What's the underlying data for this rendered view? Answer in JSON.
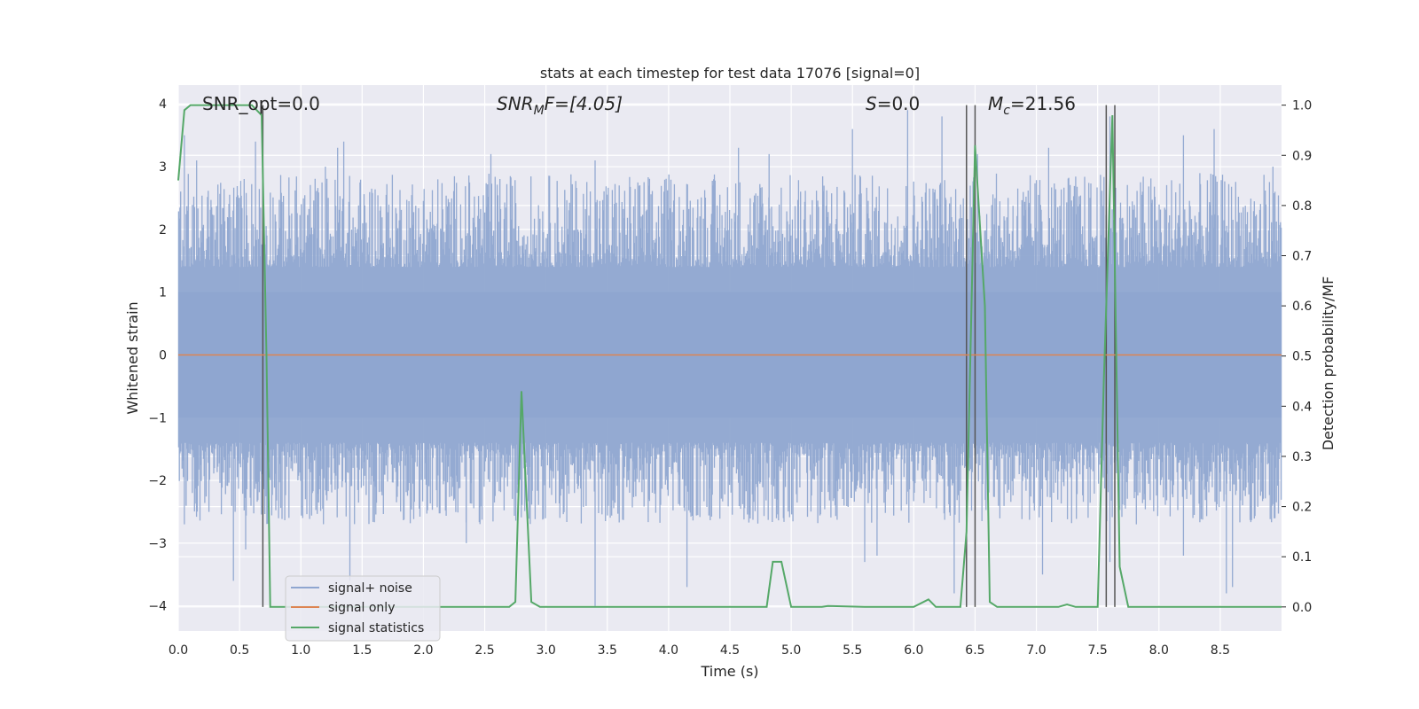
{
  "chart_data": {
    "type": "line",
    "title": "stats at each timestep for test data 17076 [signal=0]",
    "xlabel": "Time (s)",
    "ylabel": "Whitened strain",
    "y2label": "Detection probability/MF",
    "xlim": [
      0,
      9.0
    ],
    "ylim": [
      -4.4,
      4.3
    ],
    "y2lim": [
      -0.048,
      1.04
    ],
    "x_ticks": [
      "0.0",
      "0.5",
      "1.0",
      "1.5",
      "2.0",
      "2.5",
      "3.0",
      "3.5",
      "4.0",
      "4.5",
      "5.0",
      "5.5",
      "6.0",
      "6.5",
      "7.0",
      "7.5",
      "8.0",
      "8.5"
    ],
    "y_ticks": [
      "4",
      "3",
      "2",
      "1",
      "0",
      "−1",
      "−2",
      "−3",
      "−4"
    ],
    "y2_ticks": [
      "1.0",
      "0.9",
      "0.8",
      "0.7",
      "0.6",
      "0.5",
      "0.4",
      "0.3",
      "0.2",
      "0.1",
      "0.0"
    ],
    "grid": true,
    "legend_position": "lower-left",
    "annotations": {
      "snr_opt": "SNR_opt=0.0",
      "snr_mf_main": "SNR",
      "snr_mf_sub": "M",
      "snr_mf_rest": "F=[4.05]",
      "s_main": "S",
      "s_rest": "=0.0",
      "mc_main": "M",
      "mc_sub": "c",
      "mc_rest": "=21.56"
    },
    "series": [
      {
        "name": "signal+ noise",
        "color": "#8fa6d0",
        "axis": "left",
        "description_values": "white noise, approx ±2 sigma",
        "outlier_peaks": [
          [
            0.05,
            3.5
          ],
          [
            0.15,
            3.1
          ],
          [
            0.63,
            3.4
          ],
          [
            1.2,
            3.0
          ],
          [
            1.3,
            3.3
          ],
          [
            1.35,
            3.4
          ],
          [
            2.55,
            3.2
          ],
          [
            3.4,
            3.1
          ],
          [
            4.57,
            3.3
          ],
          [
            4.82,
            3.2
          ],
          [
            5.5,
            3.6
          ],
          [
            5.95,
            3.9
          ],
          [
            6.23,
            3.8
          ],
          [
            6.52,
            3.2
          ],
          [
            7.1,
            3.3
          ],
          [
            7.6,
            3.8
          ],
          [
            8.2,
            3.5
          ],
          [
            8.45,
            3.6
          ],
          [
            8.93,
            3.0
          ]
        ],
        "outlier_troughs": [
          [
            0.05,
            -2.7
          ],
          [
            0.45,
            -3.6
          ],
          [
            0.55,
            -3.1
          ],
          [
            1.4,
            -3.6
          ],
          [
            2.35,
            -3.0
          ],
          [
            3.4,
            -4.0
          ],
          [
            4.15,
            -3.7
          ],
          [
            5.6,
            -3.3
          ],
          [
            5.7,
            -3.2
          ],
          [
            6.33,
            -3.8
          ],
          [
            7.05,
            -3.5
          ],
          [
            7.6,
            -3.3
          ],
          [
            8.2,
            -3.2
          ],
          [
            8.55,
            -3.8
          ],
          [
            8.6,
            -3.7
          ]
        ]
      },
      {
        "name": "signal only",
        "color": "#dd8452",
        "axis": "left",
        "x": [
          0,
          9.0
        ],
        "y": [
          0,
          0
        ]
      },
      {
        "name": "signal statistics",
        "color": "#55a868",
        "axis": "right",
        "x": [
          0,
          0.05,
          0.1,
          0.5,
          0.6,
          0.68,
          0.72,
          0.75,
          2.7,
          2.75,
          2.8,
          2.88,
          2.95,
          4.8,
          4.85,
          4.92,
          5.0,
          5.25,
          5.3,
          5.6,
          6.0,
          6.12,
          6.18,
          6.38,
          6.43,
          6.5,
          6.58,
          6.62,
          6.68,
          7.18,
          7.25,
          7.32,
          7.5,
          7.55,
          7.62,
          7.68,
          7.75,
          9.0
        ],
        "y": [
          0.85,
          0.99,
          1.0,
          1.0,
          1.0,
          0.98,
          0.5,
          0.0,
          0.0,
          0.01,
          0.43,
          0.01,
          0.0,
          0.0,
          0.09,
          0.09,
          0.0,
          0.0,
          0.002,
          0.0,
          0.0,
          0.015,
          0.0,
          0.0,
          0.15,
          0.92,
          0.6,
          0.01,
          0.0,
          0.0,
          0.005,
          0.0,
          0.0,
          0.45,
          0.98,
          0.08,
          0.0,
          0.0
        ]
      }
    ],
    "vertical_markers": [
      0.69,
      6.43,
      6.5,
      7.57,
      7.64
    ]
  }
}
